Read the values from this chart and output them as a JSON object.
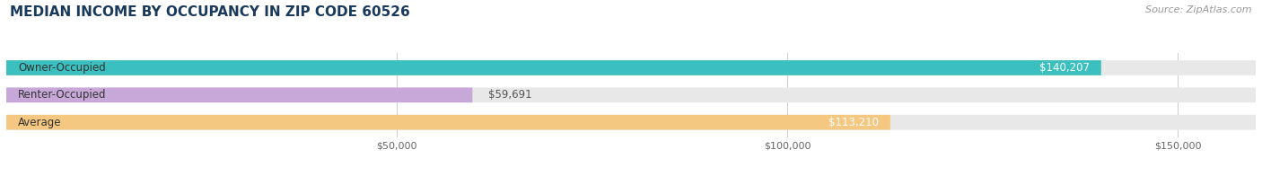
{
  "title": "MEDIAN INCOME BY OCCUPANCY IN ZIP CODE 60526",
  "source": "Source: ZipAtlas.com",
  "categories": [
    "Owner-Occupied",
    "Renter-Occupied",
    "Average"
  ],
  "values": [
    140207,
    59691,
    113210
  ],
  "bar_colors": [
    "#3bbfbf",
    "#c8a8d8",
    "#f5c882"
  ],
  "bar_labels": [
    "$140,207",
    "$59,691",
    "$113,210"
  ],
  "label_inside": [
    true,
    false,
    true
  ],
  "xlim": [
    0,
    160000
  ],
  "xticks": [
    0,
    50000,
    100000,
    150000
  ],
  "xticklabels": [
    "$50,000",
    "$100,000",
    "$150,000"
  ],
  "bar_bg_color": "#e8e8e8",
  "title_color": "#1a3a5c",
  "source_color": "#999999",
  "title_fontsize": 11,
  "source_fontsize": 8,
  "label_fontsize": 8.5,
  "tick_fontsize": 8,
  "category_fontsize": 8.5
}
